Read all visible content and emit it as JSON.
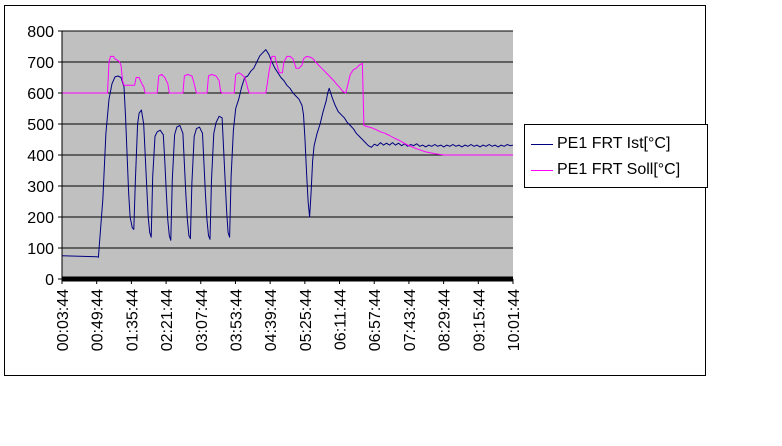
{
  "chart_data": {
    "type": "line",
    "title": "",
    "xlabel": "",
    "ylabel": "",
    "ylim": [
      0,
      800
    ],
    "yticks": [
      0,
      100,
      200,
      300,
      400,
      500,
      600,
      700,
      800
    ],
    "grid": true,
    "legend_position": "right",
    "plot_background": "#c0c0c0",
    "x_tick_labels": [
      "00:03:44",
      "00:49:44",
      "01:35:44",
      "02:21:44",
      "03:07:44",
      "03:53:44",
      "04:39:44",
      "05:25:44",
      "06:11:44",
      "06:57:44",
      "07:43:44",
      "08:29:44",
      "09:15:44",
      "10:01:44"
    ],
    "x_minutes_start": 3.733,
    "x_minutes_end": 601.733,
    "series": [
      {
        "name": "PE1 FRT Ist[°C]",
        "color": "#000080",
        "points": [
          [
            3.7,
            75
          ],
          [
            50,
            72
          ],
          [
            52,
            70
          ],
          [
            58,
            260
          ],
          [
            62,
            470
          ],
          [
            66,
            580
          ],
          [
            70,
            630
          ],
          [
            74,
            652
          ],
          [
            78,
            655
          ],
          [
            82,
            650
          ],
          [
            86,
            620
          ],
          [
            88,
            520
          ],
          [
            90,
            400
          ],
          [
            92,
            280
          ],
          [
            94,
            200
          ],
          [
            97,
            165
          ],
          [
            99,
            160
          ],
          [
            101,
            320
          ],
          [
            104,
            500
          ],
          [
            106,
            535
          ],
          [
            109,
            545
          ],
          [
            112,
            500
          ],
          [
            114,
            400
          ],
          [
            116,
            300
          ],
          [
            118,
            200
          ],
          [
            120,
            150
          ],
          [
            122,
            135
          ],
          [
            124,
            330
          ],
          [
            127,
            460
          ],
          [
            130,
            475
          ],
          [
            134,
            480
          ],
          [
            138,
            465
          ],
          [
            140,
            380
          ],
          [
            142,
            280
          ],
          [
            144,
            190
          ],
          [
            146,
            140
          ],
          [
            148,
            125
          ],
          [
            150,
            320
          ],
          [
            153,
            465
          ],
          [
            156,
            490
          ],
          [
            160,
            495
          ],
          [
            164,
            470
          ],
          [
            166,
            370
          ],
          [
            168,
            270
          ],
          [
            170,
            190
          ],
          [
            172,
            140
          ],
          [
            174,
            130
          ],
          [
            176,
            310
          ],
          [
            179,
            460
          ],
          [
            182,
            485
          ],
          [
            186,
            490
          ],
          [
            190,
            470
          ],
          [
            192,
            370
          ],
          [
            194,
            270
          ],
          [
            196,
            190
          ],
          [
            198,
            140
          ],
          [
            200,
            128
          ],
          [
            202,
            320
          ],
          [
            205,
            470
          ],
          [
            208,
            505
          ],
          [
            212,
            525
          ],
          [
            216,
            520
          ],
          [
            218,
            420
          ],
          [
            220,
            320
          ],
          [
            222,
            220
          ],
          [
            224,
            150
          ],
          [
            226,
            135
          ],
          [
            228,
            330
          ],
          [
            231,
            480
          ],
          [
            234,
            550
          ],
          [
            238,
            580
          ],
          [
            242,
            620
          ],
          [
            246,
            650
          ],
          [
            250,
            655
          ],
          [
            254,
            670
          ],
          [
            258,
            680
          ],
          [
            262,
            700
          ],
          [
            266,
            720
          ],
          [
            270,
            730
          ],
          [
            274,
            740
          ],
          [
            278,
            725
          ],
          [
            282,
            700
          ],
          [
            286,
            680
          ],
          [
            290,
            665
          ],
          [
            294,
            650
          ],
          [
            298,
            640
          ],
          [
            302,
            625
          ],
          [
            306,
            615
          ],
          [
            310,
            600
          ],
          [
            314,
            590
          ],
          [
            318,
            580
          ],
          [
            322,
            560
          ],
          [
            324,
            530
          ],
          [
            326,
            450
          ],
          [
            328,
            340
          ],
          [
            330,
            250
          ],
          [
            332,
            200
          ],
          [
            334,
            280
          ],
          [
            336,
            380
          ],
          [
            338,
            430
          ],
          [
            342,
            470
          ],
          [
            346,
            500
          ],
          [
            350,
            540
          ],
          [
            354,
            575
          ],
          [
            356,
            600
          ],
          [
            358,
            615
          ],
          [
            362,
            585
          ],
          [
            366,
            560
          ],
          [
            370,
            540
          ],
          [
            374,
            530
          ],
          [
            378,
            520
          ],
          [
            382,
            505
          ],
          [
            386,
            495
          ],
          [
            390,
            485
          ],
          [
            394,
            470
          ],
          [
            398,
            460
          ],
          [
            402,
            450
          ],
          [
            406,
            440
          ],
          [
            410,
            430
          ],
          [
            414,
            425
          ],
          [
            418,
            435
          ],
          [
            422,
            430
          ],
          [
            426,
            440
          ],
          [
            430,
            432
          ],
          [
            434,
            438
          ],
          [
            438,
            432
          ],
          [
            442,
            440
          ],
          [
            446,
            432
          ],
          [
            450,
            438
          ],
          [
            454,
            430
          ],
          [
            458,
            436
          ],
          [
            462,
            428
          ],
          [
            466,
            434
          ],
          [
            470,
            430
          ],
          [
            474,
            436
          ],
          [
            478,
            428
          ],
          [
            482,
            432
          ],
          [
            486,
            426
          ],
          [
            490,
            432
          ],
          [
            494,
            428
          ],
          [
            498,
            434
          ],
          [
            502,
            428
          ],
          [
            506,
            432
          ],
          [
            510,
            426
          ],
          [
            514,
            432
          ],
          [
            518,
            428
          ],
          [
            522,
            434
          ],
          [
            526,
            428
          ],
          [
            530,
            432
          ],
          [
            534,
            426
          ],
          [
            538,
            432
          ],
          [
            542,
            428
          ],
          [
            546,
            434
          ],
          [
            550,
            428
          ],
          [
            554,
            432
          ],
          [
            558,
            426
          ],
          [
            562,
            432
          ],
          [
            566,
            428
          ],
          [
            570,
            434
          ],
          [
            574,
            428
          ],
          [
            578,
            432
          ],
          [
            582,
            426
          ],
          [
            586,
            432
          ],
          [
            590,
            428
          ],
          [
            594,
            434
          ],
          [
            598,
            430
          ],
          [
            601.7,
            432
          ]
        ]
      },
      {
        "name": "PE1 FRT Soll[°C]",
        "color": "#ff00ff",
        "points": [
          [
            3.7,
            600
          ],
          [
            64,
            600
          ],
          [
            66,
            700
          ],
          [
            68,
            718
          ],
          [
            72,
            718
          ],
          [
            74,
            710
          ],
          [
            78,
            705
          ],
          [
            80,
            700
          ],
          [
            82,
            690
          ],
          [
            84,
            640
          ],
          [
            86,
            625
          ],
          [
            100,
            625
          ],
          [
            102,
            650
          ],
          [
            106,
            650
          ],
          [
            110,
            628
          ],
          [
            112,
            620
          ],
          [
            114,
            600
          ],
          [
            130,
            600
          ],
          [
            132,
            655
          ],
          [
            136,
            660
          ],
          [
            140,
            650
          ],
          [
            144,
            630
          ],
          [
            146,
            600
          ],
          [
            164,
            600
          ],
          [
            166,
            655
          ],
          [
            170,
            660
          ],
          [
            176,
            655
          ],
          [
            178,
            640
          ],
          [
            180,
            620
          ],
          [
            182,
            600
          ],
          [
            196,
            600
          ],
          [
            198,
            655
          ],
          [
            202,
            660
          ],
          [
            208,
            655
          ],
          [
            212,
            640
          ],
          [
            214,
            605
          ],
          [
            216,
            600
          ],
          [
            232,
            600
          ],
          [
            234,
            660
          ],
          [
            238,
            665
          ],
          [
            242,
            660
          ],
          [
            246,
            650
          ],
          [
            248,
            635
          ],
          [
            250,
            615
          ],
          [
            252,
            600
          ],
          [
            274,
            600
          ],
          [
            276,
            630
          ],
          [
            278,
            665
          ],
          [
            282,
            718
          ],
          [
            286,
            718
          ],
          [
            290,
            680
          ],
          [
            292,
            665
          ],
          [
            296,
            665
          ],
          [
            298,
            700
          ],
          [
            302,
            718
          ],
          [
            306,
            718
          ],
          [
            310,
            710
          ],
          [
            312,
            695
          ],
          [
            314,
            680
          ],
          [
            318,
            680
          ],
          [
            322,
            690
          ],
          [
            324,
            710
          ],
          [
            328,
            718
          ],
          [
            332,
            716
          ],
          [
            336,
            712
          ],
          [
            340,
            700
          ],
          [
            344,
            690
          ],
          [
            348,
            680
          ],
          [
            352,
            670
          ],
          [
            356,
            660
          ],
          [
            360,
            650
          ],
          [
            364,
            640
          ],
          [
            368,
            628
          ],
          [
            372,
            618
          ],
          [
            376,
            605
          ],
          [
            380,
            600
          ],
          [
            382,
            620
          ],
          [
            386,
            660
          ],
          [
            390,
            675
          ],
          [
            394,
            680
          ],
          [
            398,
            690
          ],
          [
            402,
            695
          ],
          [
            404,
            495
          ],
          [
            408,
            492
          ],
          [
            414,
            488
          ],
          [
            420,
            482
          ],
          [
            426,
            475
          ],
          [
            432,
            470
          ],
          [
            438,
            463
          ],
          [
            444,
            455
          ],
          [
            450,
            448
          ],
          [
            456,
            440
          ],
          [
            462,
            432
          ],
          [
            468,
            426
          ],
          [
            474,
            420
          ],
          [
            480,
            415
          ],
          [
            486,
            410
          ],
          [
            492,
            407
          ],
          [
            498,
            404
          ],
          [
            504,
            402
          ],
          [
            510,
            400
          ],
          [
            520,
            400
          ],
          [
            601.7,
            400
          ]
        ]
      }
    ]
  }
}
